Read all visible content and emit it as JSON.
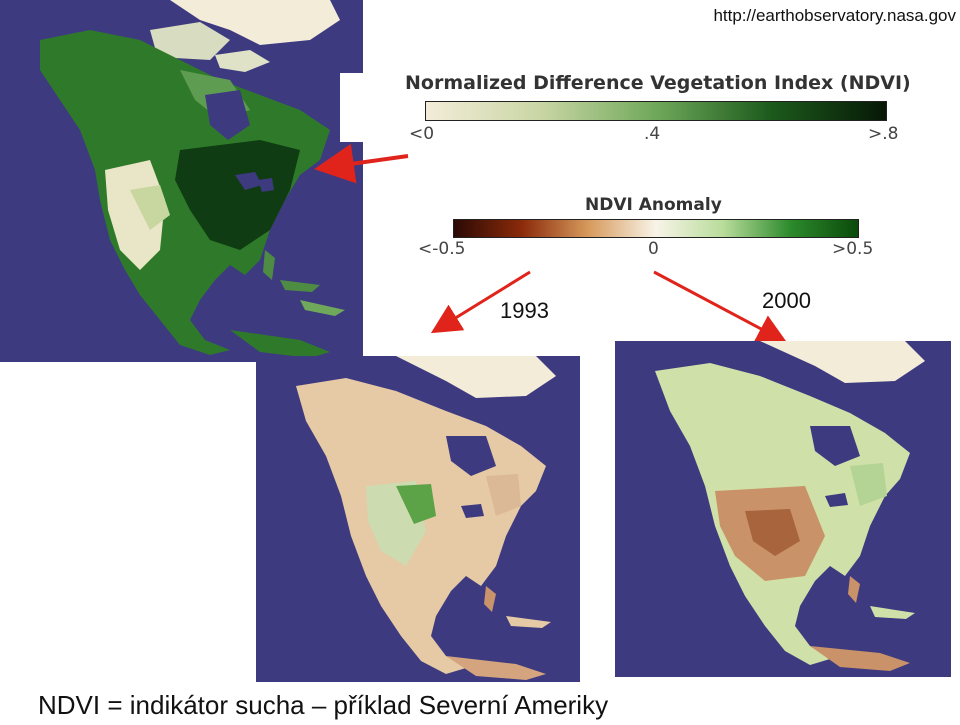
{
  "source_url": "http://earthobservatory.nasa.gov",
  "ndvi_legend": {
    "title": "Normalized Difference Vegetation Index (NDVI)",
    "ticks": [
      "<0",
      ".4",
      ">.8"
    ],
    "gradient": [
      "#f3ecd9",
      "#c9d6a4",
      "#6fa85a",
      "#1c5a1c",
      "#061806"
    ]
  },
  "anomaly_legend": {
    "title": "NDVI Anomaly",
    "ticks": [
      "<-0.5",
      "0",
      ">0.5"
    ],
    "gradient": [
      "#2b0a05",
      "#8a2a0a",
      "#d79a5c",
      "#f8f4e8",
      "#b8dc9a",
      "#2c8a2c",
      "#0b4a0b"
    ]
  },
  "maps": {
    "left_label": "1993",
    "right_label": "2000"
  },
  "caption": "NDVI = indikátor sucha – příklad Severní Ameriky",
  "colors": {
    "ocean": "#3d3a80",
    "arrow": "#e0241b"
  }
}
